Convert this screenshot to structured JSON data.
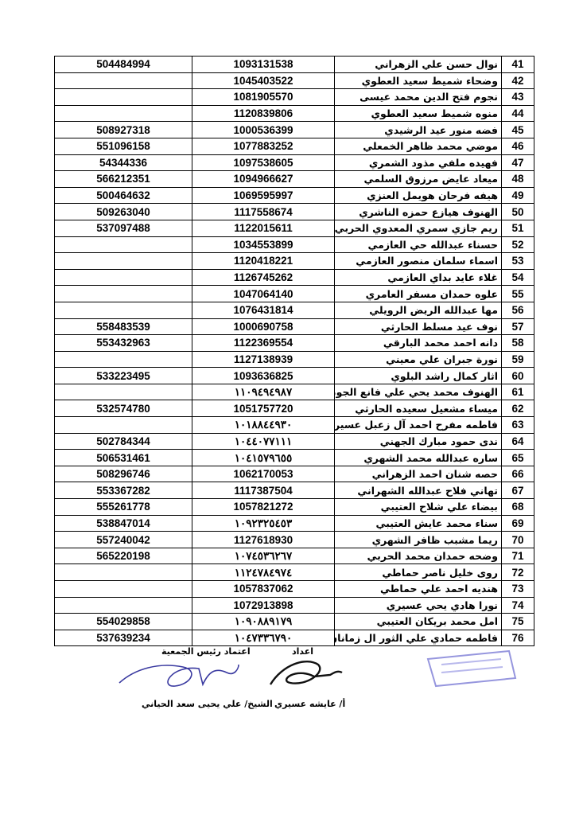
{
  "table": {
    "rows": [
      {
        "no": 41,
        "name": "نوال حسن علي الزهراني",
        "id": "1093131538",
        "phone": "504484994"
      },
      {
        "no": 42,
        "name": "وضحاء شميط سعيد العطوي",
        "id": "1045403522"
      },
      {
        "no": 43,
        "name": "نجوم فتح الدين محمد عيسى",
        "id": "1081905570"
      },
      {
        "no": 44,
        "name": "منوه شميط سعيد العطوي",
        "id": "1120839806"
      },
      {
        "no": 45,
        "name": "فضه منور عيد الرشيدي",
        "id": "1000536399",
        "phone": "508927318"
      },
      {
        "no": 46,
        "name": "موضي محمد ظاهر الخمعلي",
        "id": "1077883252",
        "phone": "551096158"
      },
      {
        "no": 47,
        "name": "فهيده ملفي مذود الشمري",
        "id": "1097538605",
        "phone": "54344336"
      },
      {
        "no": 48,
        "name": "ميعاد عايض مرزوق السلمي",
        "id": "1094966627",
        "phone": "566212351"
      },
      {
        "no": 49,
        "name": "هيفه فرحان هويمل العنزي",
        "id": "1069595997",
        "phone": "500464632"
      },
      {
        "no": 50,
        "name": "الهنوف هيازع حمزه الناشري",
        "id": "1117558674",
        "phone": "509263040"
      },
      {
        "no": 51,
        "name": "ريم جازي سمري المعدوي الحربي",
        "id": "1122015611",
        "phone": "537097488"
      },
      {
        "no": 52,
        "name": "حسناء عبدالله حي العازمي",
        "id": "1034553899"
      },
      {
        "no": 53,
        "name": "اسماء سلمان منصور العازمي",
        "id": "1120418221"
      },
      {
        "no": 54,
        "name": "غلاء عايد بداي العازمي",
        "id": "1126745262"
      },
      {
        "no": 55,
        "name": "علوه حمدان مسفر العامري",
        "id": "1047064140"
      },
      {
        "no": 56,
        "name": "مها عبدالله الريض الرويلي",
        "id": "1076431814"
      },
      {
        "no": 57,
        "name": "نوف عيد مسلط الحارثي",
        "id": "1000690758",
        "phone": "558483539"
      },
      {
        "no": 58,
        "name": "دانه احمد محمد البارقي",
        "id": "1122369554",
        "phone": "553432963"
      },
      {
        "no": 59,
        "name": "نورة جبران علي معيني",
        "id": "1127138939"
      },
      {
        "no": 60,
        "name": "اثار كمال راشد البلوي",
        "id": "1093636825",
        "phone": "533223495"
      },
      {
        "no": 61,
        "name": "الهنوف محمد يحي علي فانع الجوني",
        "id": "١١٠٩٤٩٤٩٨٧"
      },
      {
        "no": 62,
        "name": "ميساء مشعيل سعيده الحارثي",
        "id": "1051757720",
        "phone": "532574780"
      },
      {
        "no": 63,
        "name": "فاطمه مفرح احمد آل زعبل عسيري",
        "id": "١٠١٨٨٤٤٩٣٠"
      },
      {
        "no": 64,
        "name": "ندى حمود مبارك الجهني",
        "id": "١٠٤٤٠٧٧١١١",
        "phone": "502784344"
      },
      {
        "no": 65,
        "name": "ساره عبدالله محمد الشهري",
        "id": "١٠٤١٥٧٩٦٥٥",
        "phone": "506531461"
      },
      {
        "no": 66,
        "name": "حصه شنان احمد الزهراني",
        "id": "1062170053",
        "phone": "508296746"
      },
      {
        "no": 67,
        "name": "تهاني فلاح عبدالله الشهراني",
        "id": "1117387504",
        "phone": "553367282"
      },
      {
        "no": 68,
        "name": "بيضاء علي شلاح العتيبي",
        "id": "1057821272",
        "phone": "555261778"
      },
      {
        "no": 69,
        "name": "سناء محمد عايش العتيبي",
        "id": "١٠٩٢٣٢٥٤٥٣",
        "phone": "538847014"
      },
      {
        "no": 70,
        "name": "ريما مشبب ظافر الشهري",
        "id": "1127618930",
        "phone": "557240042"
      },
      {
        "no": 71,
        "name": "وضحه حمدان محمد الحربي",
        "id": "١٠٧٤٥٣٦٢٦٧",
        "phone": "565220198"
      },
      {
        "no": 72,
        "name": "روى خليل ناصر حماطي",
        "id": "١١٢٤٧٨٤٩٧٤"
      },
      {
        "no": 73,
        "name": "هنديه احمد علي حماطي",
        "id": "1057837062"
      },
      {
        "no": 74,
        "name": "نورا هادي يحي عسيري",
        "id": "1072913898"
      },
      {
        "no": 75,
        "name": "امل محمد بريكان العتيبي",
        "id": "١٠٩٠٨٨٩١٧٩",
        "phone": "554029858"
      },
      {
        "no": 76,
        "name": "فاطمه حمادي علي الثور ال زمانان",
        "id": "١٠٤٧٣٣٦٧٩٠",
        "phone": "537639234"
      }
    ]
  },
  "signatures": {
    "approval_title": "اعتماد رئيس الجمعية",
    "approval_name": "الشيخ/ علي يحيى سعد الحياني",
    "prepared_title": "اعداد",
    "prepared_name": "أ/ عايشه عسيري"
  }
}
